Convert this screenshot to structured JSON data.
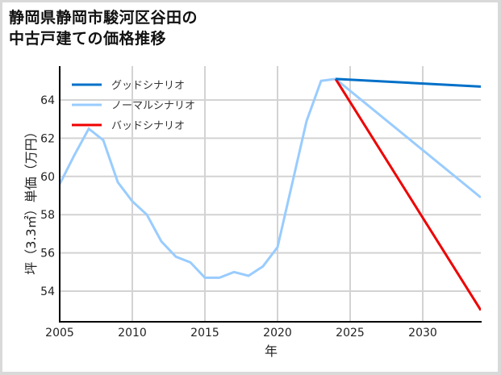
{
  "title_line1": "静岡県静岡市駿河区谷田の",
  "title_line2": "中古戸建ての価格推移",
  "colors": {
    "good": "#0070c8",
    "normal": "#99ccff",
    "bad": "#ee0000",
    "grid": "#d3d3d3",
    "axis": "#000000",
    "frame": "#d9d9d9"
  },
  "legend": [
    {
      "label": "グッドシナリオ",
      "color": "#0070c8"
    },
    {
      "label": "ノーマルシナリオ",
      "color": "#99ccff"
    },
    {
      "label": "バッドシナリオ",
      "color": "#ee0000"
    }
  ],
  "axes": {
    "xlabel": "年",
    "ylabel": "坪（3.3㎡）単価（万円）",
    "xticks": [
      "2005",
      "2010",
      "2015",
      "2020",
      "2025",
      "2030"
    ],
    "yticks": [
      "54",
      "56",
      "58",
      "60",
      "62",
      "64"
    ]
  },
  "chart_data": {
    "type": "line",
    "title": "静岡県静岡市駿河区谷田の中古戸建ての価格推移",
    "xlabel": "年",
    "ylabel": "坪（3.3㎡）単価（万円）",
    "xlim": [
      2005,
      2034
    ],
    "ylim": [
      52.5,
      65.5
    ],
    "grid": true,
    "legend_position": "upper left",
    "series": [
      {
        "name": "ノーマルシナリオ",
        "color": "#99ccff",
        "x": [
          2005,
          2006,
          2007,
          2008,
          2009,
          2010,
          2011,
          2012,
          2013,
          2014,
          2015,
          2016,
          2017,
          2018,
          2019,
          2020,
          2021,
          2022,
          2023,
          2024,
          2034
        ],
        "values": [
          59.6,
          61.1,
          62.5,
          61.9,
          59.7,
          58.7,
          58.0,
          56.6,
          55.8,
          55.5,
          54.7,
          54.7,
          55.0,
          54.8,
          55.3,
          56.3,
          59.6,
          62.9,
          65.0,
          65.1,
          58.9
        ]
      },
      {
        "name": "グッドシナリオ",
        "color": "#0070c8",
        "x": [
          2024,
          2034
        ],
        "values": [
          65.1,
          64.7
        ]
      },
      {
        "name": "バッドシナリオ",
        "color": "#ee0000",
        "x": [
          2024,
          2034
        ],
        "values": [
          65.1,
          53.0
        ]
      }
    ]
  }
}
